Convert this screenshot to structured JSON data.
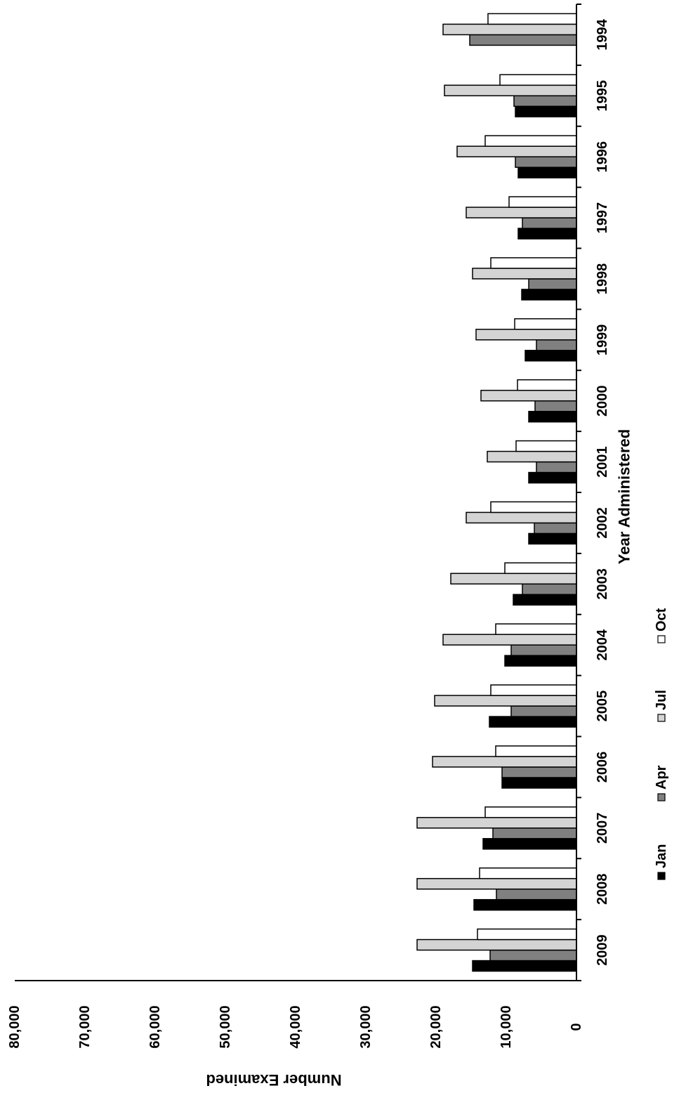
{
  "chart_data": {
    "type": "bar",
    "orientation": "rotated-90-clockwise",
    "title": "",
    "xlabel": "Year Administered",
    "ylabel": "Number Examined",
    "ylim": [
      0,
      80000
    ],
    "yticks": [
      "0",
      "10,000",
      "20,000",
      "30,000",
      "40,000",
      "50,000",
      "60,000",
      "70,000",
      "80,000"
    ],
    "grid": false,
    "legend_position": "bottom",
    "categories": [
      "1994",
      "1995",
      "1996",
      "1997",
      "1998",
      "1999",
      "2000",
      "2001",
      "2002",
      "2003",
      "2004",
      "2005",
      "2006",
      "2007",
      "2008",
      "2009"
    ],
    "series": [
      {
        "name": "Jan",
        "color": "#000000",
        "values": [
          0,
          8700,
          8300,
          8300,
          7800,
          7300,
          6800,
          6800,
          6800,
          9000,
          10200,
          12400,
          10600,
          13300,
          14600,
          14800
        ]
      },
      {
        "name": "Apr",
        "color": "#808080",
        "values": [
          15200,
          8900,
          8700,
          7700,
          6800,
          5700,
          5900,
          5700,
          6000,
          7700,
          9300,
          9300,
          10600,
          11900,
          11400,
          12300
        ]
      },
      {
        "name": "Jul",
        "color": "#d4d4d4",
        "values": [
          19000,
          18800,
          17000,
          15700,
          14800,
          14300,
          13600,
          12700,
          15700,
          17900,
          19000,
          20200,
          20500,
          22700,
          22700,
          22700
        ]
      },
      {
        "name": "Oct",
        "color": "#ffffff",
        "values": [
          12600,
          10900,
          13000,
          9600,
          12200,
          8800,
          8400,
          8600,
          12200,
          10200,
          11500,
          12200,
          11500,
          13000,
          13800,
          14100
        ]
      }
    ]
  }
}
